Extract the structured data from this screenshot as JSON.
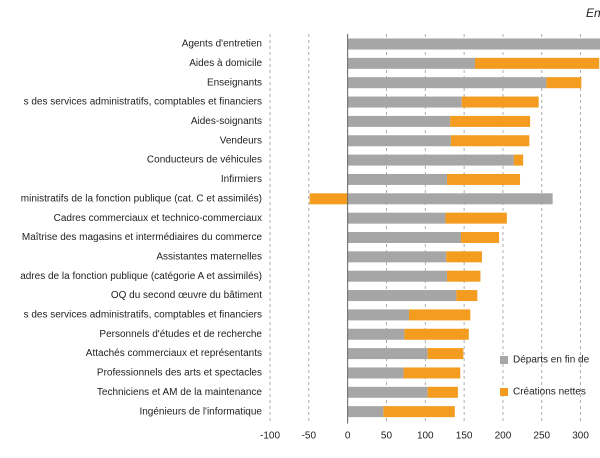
{
  "chart_data": {
    "type": "bar",
    "orientation": "horizontal",
    "stacked": true,
    "title": "En",
    "categories": [
      "Agents d'entretien",
      "Aides à domicile",
      "Enseignants",
      "s des services administratifs, comptables et financiers",
      "Aides-soignants",
      "Vendeurs",
      "Conducteurs de véhicules",
      "Infirmiers",
      "ministratifs de la fonction publique (cat. C et assimilés)",
      "Cadres commerciaux et technico-commerciaux",
      "Maîtrise des magasins et intermédiaires du commerce",
      "Assistantes maternelles",
      "adres de la fonction publique (catégorie A et assimilés)",
      "OQ du second œuvre du bâtiment",
      "s des services administratifs, comptables et financiers",
      "Personnels d'études et de recherche",
      "Attachés commerciaux et représentants",
      "Professionnels des arts et spectacles",
      "Techniciens et AM de la maintenance",
      "Ingénieurs de l'informatique"
    ],
    "series": [
      {
        "name": "Départs en fin de",
        "color": "#a6a6a6",
        "values": [
          330,
          164,
          256,
          147,
          132,
          133,
          214,
          128,
          264,
          126,
          146,
          127,
          128,
          140,
          79,
          73,
          103,
          72,
          103,
          46
        ]
      },
      {
        "name": "Créations nettes",
        "color": "#f39c1f",
        "values": [
          0,
          160,
          45,
          99,
          103,
          101,
          12,
          94,
          -49,
          79,
          49,
          46,
          43,
          27,
          79,
          83,
          46,
          73,
          39,
          92
        ]
      }
    ],
    "xlim": [
      -100,
      325
    ],
    "xticks": [
      -100,
      -50,
      0,
      50,
      100,
      150,
      200,
      250,
      300
    ],
    "grid": true
  }
}
